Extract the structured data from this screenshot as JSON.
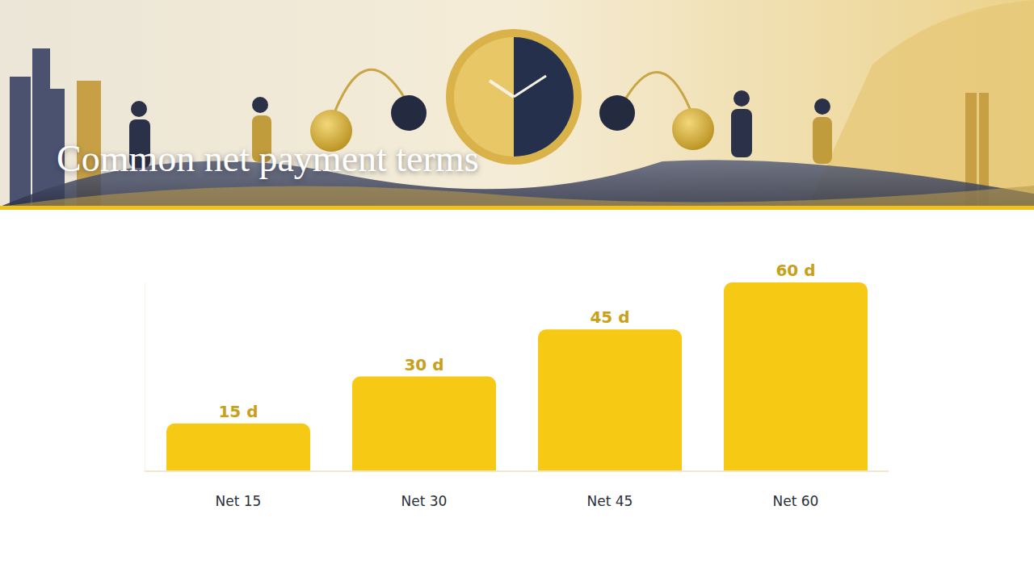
{
  "chart_data": {
    "type": "bar",
    "title": "Common net payment terms",
    "categories": [
      "Net 15",
      "Net 30",
      "Net 45",
      "Net 60"
    ],
    "values": [
      15,
      30,
      45,
      60
    ],
    "value_labels": [
      "15 d",
      "30 d",
      "45 d",
      "60 d"
    ],
    "data_labels": true,
    "color": "#f6c915",
    "ylim": [
      0,
      60
    ],
    "yticks": [],
    "tick_labels": "x",
    "grid": false
  }
}
